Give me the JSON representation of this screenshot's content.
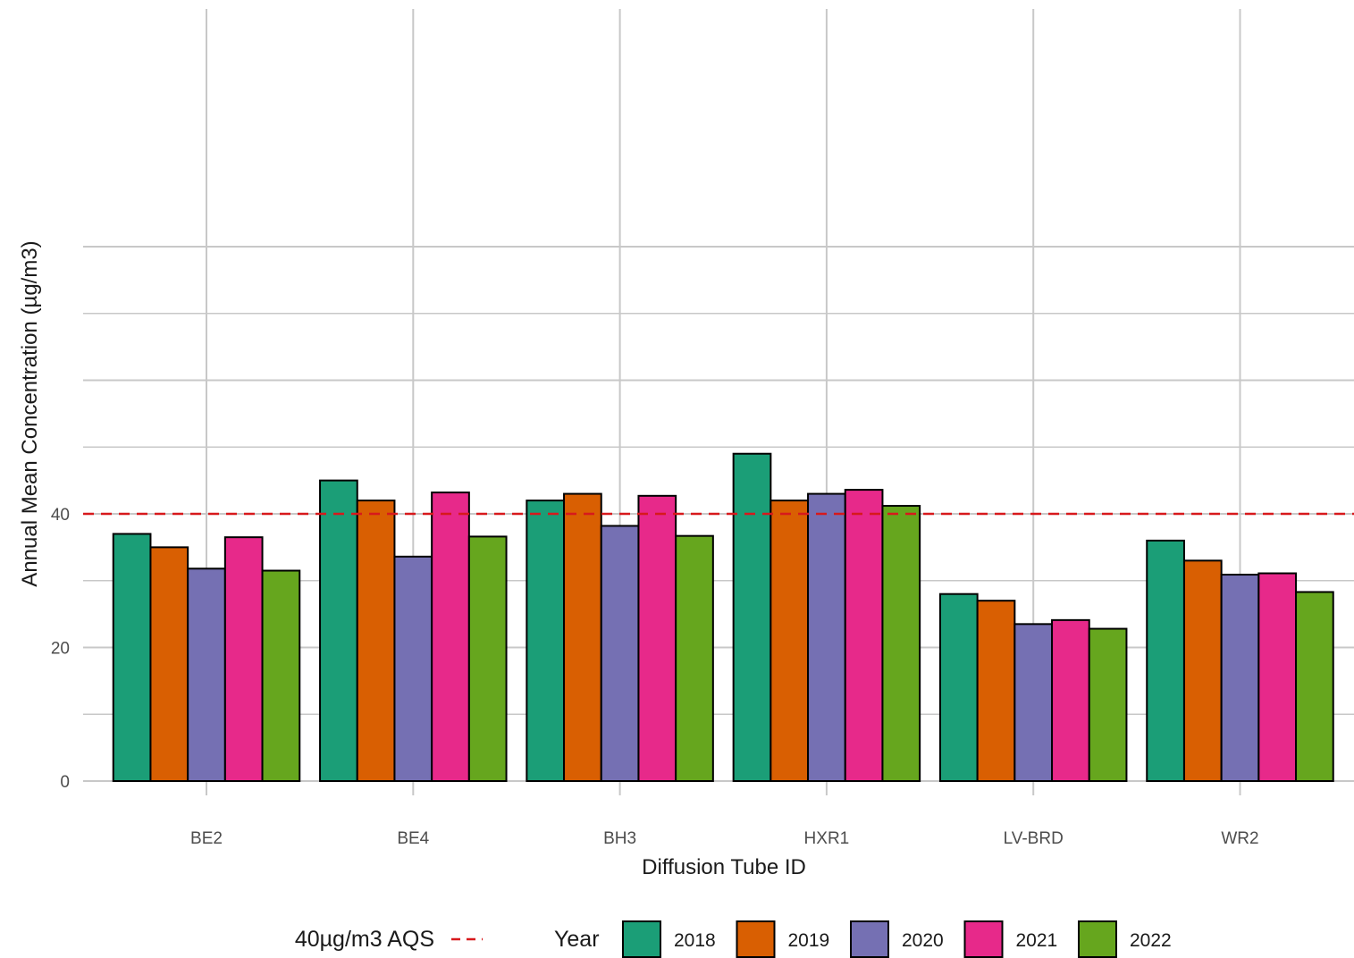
{
  "chart_data": {
    "type": "bar",
    "title": "",
    "xlabel": "Diffusion Tube ID",
    "ylabel": "Annual Mean Concentration (µg/m3)",
    "ylim": [
      0,
      100
    ],
    "yticks": [
      0,
      20,
      40
    ],
    "categories": [
      "BE2",
      "BE4",
      "BH3",
      "HXR1",
      "LV-BRD",
      "WR2"
    ],
    "series": [
      {
        "name": "2018",
        "color": "#1b9e77",
        "values": [
          37.0,
          45.0,
          42.0,
          49.0,
          28.0,
          36.0
        ]
      },
      {
        "name": "2019",
        "color": "#d95f02",
        "values": [
          35.0,
          42.0,
          43.0,
          42.0,
          27.0,
          33.0
        ]
      },
      {
        "name": "2020",
        "color": "#7570b3",
        "values": [
          31.8,
          33.6,
          38.2,
          43.0,
          23.5,
          30.9
        ]
      },
      {
        "name": "2021",
        "color": "#e7298a",
        "values": [
          36.5,
          43.2,
          42.7,
          43.6,
          24.1,
          31.1
        ]
      },
      {
        "name": "2022",
        "color": "#66a61e",
        "values": [
          31.5,
          36.6,
          36.7,
          41.2,
          22.8,
          28.3
        ]
      }
    ],
    "reference_line": {
      "value": 40,
      "label": "40µg/m3 AQS",
      "color": "#d7191c",
      "style": "dashed"
    },
    "legend": {
      "title": "Year",
      "position": "bottom"
    },
    "grid": true
  }
}
